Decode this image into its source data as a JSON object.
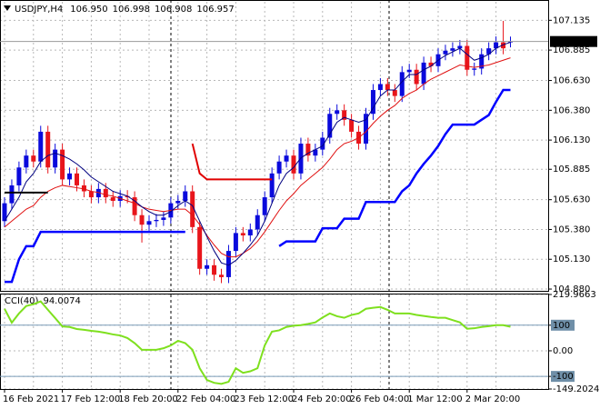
{
  "chart_data": [
    {
      "type": "candlestick",
      "title": "USDJPY,H4",
      "ohlc_labels": [
        "106.950",
        "106.998",
        "106.908",
        "106.957"
      ],
      "categories": [
        "16 Feb 2021",
        null,
        null,
        null,
        null,
        null,
        null,
        null,
        "17 Feb 12:00",
        null,
        null,
        null,
        null,
        null,
        null,
        null,
        "18 Feb 20:00",
        null,
        null,
        null,
        null,
        null,
        null,
        null,
        "22 Feb 04:00",
        null,
        null,
        null,
        null,
        null,
        null,
        null,
        "23 Feb 12:00",
        null,
        null,
        null,
        null,
        null,
        null,
        null,
        "24 Feb 20:00",
        null,
        null,
        null,
        null,
        null,
        null,
        null,
        "26 Feb 04:00",
        null,
        null,
        null,
        null,
        null,
        null,
        null,
        "1 Mar 12:00",
        null,
        null,
        null,
        null,
        null,
        null,
        null,
        "2 Mar 20:00",
        null,
        null,
        null,
        null,
        null,
        null
      ],
      "open": [
        105.45,
        105.6,
        105.75,
        105.9,
        106.0,
        105.95,
        106.2,
        105.9,
        106.05,
        105.8,
        105.85,
        105.75,
        105.7,
        105.65,
        105.72,
        105.65,
        105.62,
        105.66,
        105.65,
        105.5,
        105.42,
        105.45,
        105.46,
        105.48,
        105.6,
        105.62,
        105.7,
        105.4,
        105.05,
        105.08,
        105.0,
        104.98,
        105.2,
        105.35,
        105.33,
        105.38,
        105.5,
        105.65,
        105.85,
        105.95,
        106.0,
        105.85,
        106.1,
        106.0,
        106.05,
        106.15,
        106.35,
        106.38,
        106.3,
        106.2,
        106.1,
        106.35,
        106.55,
        106.6,
        106.55,
        106.5,
        106.7,
        106.72,
        106.6,
        106.78,
        106.75,
        106.85,
        106.88,
        106.9,
        106.92,
        106.72,
        106.73,
        106.85,
        106.9,
        106.95,
        106.95
      ],
      "high": [
        105.65,
        105.8,
        105.95,
        106.05,
        106.05,
        106.25,
        106.25,
        106.1,
        106.1,
        105.9,
        105.9,
        105.8,
        105.75,
        105.77,
        105.77,
        105.7,
        105.71,
        105.71,
        105.7,
        105.55,
        105.5,
        105.51,
        105.53,
        105.65,
        105.67,
        105.75,
        105.75,
        105.45,
        105.13,
        105.13,
        105.05,
        105.25,
        105.4,
        105.4,
        105.43,
        105.55,
        105.7,
        105.9,
        106.0,
        106.05,
        106.05,
        106.15,
        106.15,
        106.1,
        106.2,
        106.4,
        106.43,
        106.43,
        106.35,
        106.25,
        106.4,
        106.6,
        106.65,
        106.65,
        106.6,
        106.75,
        106.77,
        106.77,
        106.83,
        106.83,
        106.9,
        106.93,
        106.95,
        106.97,
        106.97,
        106.78,
        106.9,
        106.95,
        107.0,
        107.13,
        106.998
      ],
      "low": [
        105.4,
        105.55,
        105.7,
        105.85,
        105.9,
        105.9,
        105.85,
        105.85,
        105.75,
        105.75,
        105.7,
        105.65,
        105.6,
        105.6,
        105.6,
        105.57,
        105.57,
        105.6,
        105.45,
        105.27,
        105.37,
        105.4,
        105.41,
        105.43,
        105.55,
        105.57,
        105.35,
        105.0,
        105.0,
        104.95,
        104.93,
        104.93,
        105.15,
        105.28,
        105.28,
        105.33,
        105.45,
        105.6,
        105.8,
        105.9,
        105.8,
        105.8,
        105.95,
        105.95,
        106.0,
        106.1,
        106.3,
        106.25,
        106.15,
        106.05,
        106.05,
        106.3,
        106.5,
        106.5,
        106.45,
        106.45,
        106.65,
        106.55,
        106.55,
        106.7,
        106.7,
        106.8,
        106.83,
        106.85,
        106.67,
        106.67,
        106.68,
        106.8,
        106.85,
        106.85,
        106.908
      ],
      "close": [
        105.6,
        105.75,
        105.9,
        106.0,
        105.95,
        106.2,
        105.9,
        106.05,
        105.8,
        105.85,
        105.75,
        105.7,
        105.65,
        105.72,
        105.65,
        105.62,
        105.66,
        105.65,
        105.5,
        105.42,
        105.45,
        105.46,
        105.48,
        105.6,
        105.62,
        105.7,
        105.4,
        105.05,
        105.08,
        105.0,
        104.98,
        105.2,
        105.35,
        105.33,
        105.38,
        105.5,
        105.65,
        105.85,
        105.95,
        106.0,
        105.85,
        106.1,
        106.0,
        106.05,
        106.15,
        106.35,
        106.38,
        106.3,
        106.2,
        106.1,
        106.35,
        106.55,
        106.6,
        106.55,
        106.5,
        106.7,
        106.72,
        106.6,
        106.78,
        106.75,
        106.85,
        106.88,
        106.9,
        106.92,
        106.72,
        106.73,
        106.85,
        106.9,
        106.95,
        106.9,
        106.957
      ],
      "up_color": "#0a0adc",
      "down_color": "#e8151b",
      "lines": [
        {
          "color": "#e01010",
          "width": 1,
          "values": [
            105.4,
            105.45,
            105.5,
            105.55,
            105.58,
            105.65,
            105.7,
            105.73,
            105.75,
            105.74,
            105.73,
            105.72,
            105.7,
            105.69,
            105.67,
            105.66,
            105.64,
            105.62,
            105.6,
            105.57,
            105.55,
            105.54,
            105.53,
            105.54,
            105.55,
            105.55,
            105.5,
            105.42,
            105.33,
            105.25,
            105.18,
            105.15,
            105.15,
            105.18,
            105.22,
            105.28,
            105.36,
            105.45,
            105.54,
            105.62,
            105.68,
            105.75,
            105.8,
            105.85,
            105.9,
            105.97,
            106.05,
            106.1,
            106.12,
            106.15,
            106.2,
            106.27,
            106.33,
            106.38,
            106.42,
            106.48,
            106.52,
            106.55,
            106.6,
            106.64,
            106.67,
            106.7,
            106.73,
            106.76,
            106.75,
            106.74,
            106.75,
            106.76,
            106.78,
            106.8,
            106.82
          ]
        },
        {
          "color": "#000080",
          "width": 1,
          "values": [
            105.45,
            105.55,
            105.65,
            105.78,
            105.85,
            105.95,
            106.0,
            106.02,
            106.0,
            105.97,
            105.93,
            105.88,
            105.82,
            105.78,
            105.74,
            105.7,
            105.68,
            105.66,
            105.62,
            105.57,
            105.53,
            105.5,
            105.5,
            105.53,
            105.58,
            105.62,
            105.58,
            105.45,
            105.32,
            105.2,
            105.1,
            105.08,
            105.12,
            105.18,
            105.25,
            105.33,
            105.45,
            105.6,
            105.75,
            105.85,
            105.9,
            105.98,
            106.02,
            106.05,
            106.08,
            106.18,
            106.28,
            106.32,
            106.3,
            106.28,
            106.3,
            106.4,
            106.5,
            106.55,
            106.55,
            106.62,
            106.68,
            106.68,
            106.72,
            106.75,
            106.8,
            106.84,
            106.87,
            106.9,
            106.85,
            106.8,
            106.82,
            106.85,
            106.9,
            106.93,
            106.95
          ]
        },
        {
          "color": "#0000ff",
          "width": 2.5,
          "values": [
            104.94,
            104.94,
            105.13,
            105.24,
            105.24,
            105.36,
            105.36,
            105.36,
            105.36,
            105.36,
            105.36,
            105.36,
            105.36,
            105.36,
            105.36,
            105.36,
            105.36,
            105.36,
            105.36,
            105.36,
            105.36,
            105.36,
            105.36,
            105.36,
            105.36,
            105.36,
            null,
            null,
            null,
            null,
            null,
            null,
            null,
            null,
            null,
            null,
            null,
            null,
            105.24,
            105.28,
            105.28,
            105.28,
            105.28,
            105.28,
            105.39,
            105.39,
            105.39,
            105.47,
            105.47,
            105.47,
            105.61,
            105.61,
            105.61,
            105.61,
            105.61,
            105.7,
            105.75,
            105.85,
            105.93,
            106.0,
            106.08,
            106.18,
            106.26,
            106.26,
            106.26,
            106.26,
            106.3,
            106.34,
            106.45,
            106.55,
            106.55
          ]
        },
        {
          "color": "#e00000",
          "width": 2,
          "values": [
            null,
            null,
            null,
            null,
            null,
            null,
            null,
            null,
            null,
            null,
            null,
            null,
            null,
            null,
            null,
            null,
            null,
            null,
            null,
            null,
            null,
            null,
            null,
            null,
            null,
            null,
            106.1,
            105.85,
            105.8,
            105.8,
            105.8,
            105.8,
            105.8,
            105.8,
            105.8,
            105.8,
            105.8,
            105.8,
            null,
            null,
            null,
            null,
            null,
            null,
            null,
            null,
            null,
            null,
            null,
            null,
            null,
            null,
            null,
            null,
            null,
            null,
            null,
            null,
            null,
            null,
            null,
            null,
            null,
            null,
            null,
            null,
            null,
            null,
            null,
            null,
            null
          ]
        },
        {
          "color": "#000000",
          "width": 2,
          "values": [
            105.69,
            105.69,
            105.69,
            105.69,
            105.69,
            105.69,
            105.69,
            null,
            null,
            null,
            null,
            null,
            null,
            null,
            null,
            null,
            null,
            null,
            null,
            null,
            null,
            null,
            null,
            null,
            null,
            null,
            null,
            null,
            null,
            null,
            null,
            null,
            null,
            null,
            null,
            null,
            null,
            null,
            null,
            null,
            null,
            null,
            null,
            null,
            null,
            null,
            null,
            null,
            null,
            null,
            null,
            null,
            null,
            null,
            null,
            null,
            null,
            null,
            null,
            null,
            null,
            null,
            null,
            null,
            null,
            null,
            null,
            null,
            null,
            null,
            null
          ]
        }
      ],
      "ylim": [
        104.865,
        107.29
      ],
      "yticks": [
        107.135,
        106.885,
        {
          "value": 106.63,
          "label": "106.630"
        },
        {
          "value": 106.38,
          "label": "106.380"
        },
        {
          "value": 106.13,
          "label": "106.130"
        },
        105.885,
        {
          "value": 105.63,
          "label": "105.630"
        },
        {
          "value": 105.38,
          "label": "105.380"
        },
        {
          "value": 105.13,
          "label": "105.130"
        },
        {
          "value": 104.88,
          "label": "104.880"
        }
      ],
      "grid": true
    },
    {
      "type": "line",
      "title": "CCI(40)",
      "series": [
        {
          "color": "#7ee01e",
          "values": [
            164,
            110,
            146,
            175,
            182,
            193,
            160,
            128,
            95,
            93,
            85,
            82,
            78,
            75,
            70,
            64,
            60,
            50,
            30,
            4,
            4,
            4,
            10,
            21,
            39,
            30,
            4,
            -68,
            -114,
            -125,
            -129,
            -121,
            -68,
            -86,
            -80,
            -68,
            21,
            75,
            80,
            93,
            98,
            100,
            105,
            111,
            130,
            146,
            135,
            129,
            140,
            146,
            164,
            168,
            171,
            160,
            146,
            146,
            146,
            140,
            136,
            132,
            129,
            129,
            120,
            111,
            86,
            88,
            93,
            96,
            100,
            100,
            94.0074
          ]
        }
      ],
      "ylim": [
        -149.2024,
        219.9663
      ],
      "yticks": [
        219.9663,
        100,
        {
          "value": 0,
          "label": "0.00"
        },
        -100,
        -149.2024
      ],
      "levels": [
        100,
        -100
      ],
      "grid": true
    }
  ]
}
